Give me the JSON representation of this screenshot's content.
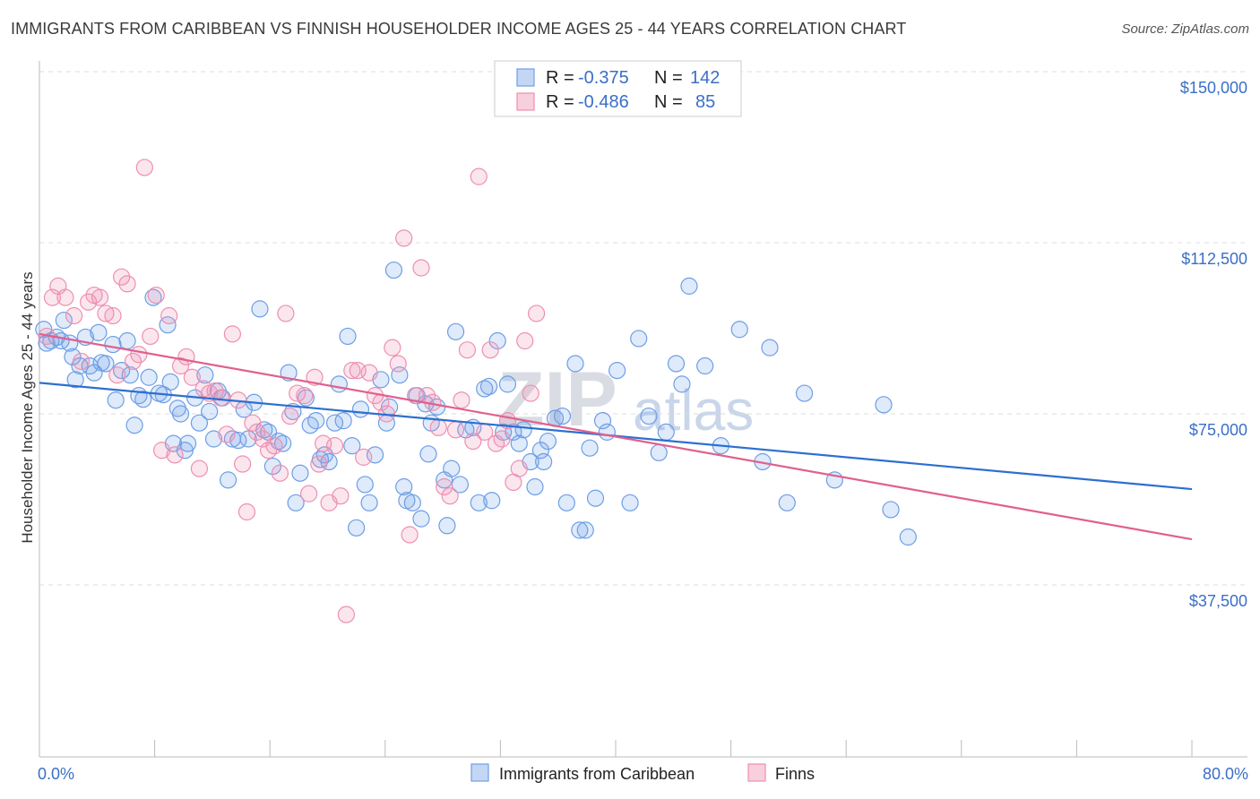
{
  "title": "IMMIGRANTS FROM CARIBBEAN VS FINNISH HOUSEHOLDER INCOME AGES 25 - 44 YEARS CORRELATION CHART",
  "source": "Source: ZipAtlas.com",
  "watermark": {
    "zip": "ZIP",
    "atlas": "atlas"
  },
  "colors": {
    "blue": "#6d9ee6",
    "blue_line": "#2d6fd0",
    "pink": "#ee8fb0",
    "pink_line": "#e0608e",
    "axis_text": "#3a6fc7"
  },
  "legend": {
    "rows": [
      {
        "r_label": "R =",
        "r_value": "-0.375",
        "n_label": "N =",
        "n_value": "142"
      },
      {
        "r_label": "R =",
        "r_value": "-0.486",
        "n_label": "N =",
        "n_value": "85"
      }
    ]
  },
  "chart_data": {
    "type": "scatter",
    "xlabel": "",
    "ylabel": "Householder Income Ages 25 - 44 years",
    "xlim": [
      0,
      80
    ],
    "ylim": [
      0,
      150000
    ],
    "x_tick_labels": [
      "0.0%",
      "80.0%"
    ],
    "y_ticks": [
      37500,
      75000,
      112500,
      150000
    ],
    "y_tick_labels": [
      "$37,500",
      "$75,000",
      "$112,500",
      "$150,000"
    ],
    "grid": true,
    "legend_position": "top-center",
    "series": [
      {
        "name": "Immigrants from Caribbean",
        "trend": {
          "x0": 0,
          "y0": 81800,
          "x1": 80,
          "y1": 58500
        },
        "points": [
          [
            0.3,
            93500
          ],
          [
            0.5,
            90500
          ],
          [
            0.8,
            91000
          ],
          [
            1.2,
            91800
          ],
          [
            1.5,
            91000
          ],
          [
            1.7,
            95500
          ],
          [
            2.1,
            90500
          ],
          [
            2.3,
            87500
          ],
          [
            2.5,
            82500
          ],
          [
            2.8,
            85500
          ],
          [
            3.2,
            91800
          ],
          [
            3.5,
            85500
          ],
          [
            3.8,
            84000
          ],
          [
            4.1,
            92800
          ],
          [
            4.3,
            86200
          ],
          [
            4.6,
            86000
          ],
          [
            5.1,
            90200
          ],
          [
            5.3,
            78000
          ],
          [
            5.7,
            84500
          ],
          [
            6.1,
            91000
          ],
          [
            6.3,
            83500
          ],
          [
            6.6,
            72500
          ],
          [
            6.9,
            79000
          ],
          [
            7.2,
            78200
          ],
          [
            7.6,
            83000
          ],
          [
            7.9,
            100500
          ],
          [
            8.3,
            79500
          ],
          [
            8.6,
            79200
          ],
          [
            8.9,
            94500
          ],
          [
            9.1,
            82000
          ],
          [
            9.3,
            68500
          ],
          [
            9.6,
            76200
          ],
          [
            9.8,
            75000
          ],
          [
            10.1,
            67000
          ],
          [
            10.3,
            68500
          ],
          [
            10.8,
            78500
          ],
          [
            11.1,
            73000
          ],
          [
            11.5,
            83500
          ],
          [
            11.8,
            75500
          ],
          [
            12.1,
            69500
          ],
          [
            12.4,
            80000
          ],
          [
            12.7,
            78500
          ],
          [
            13.1,
            60500
          ],
          [
            13.4,
            69500
          ],
          [
            13.8,
            69200
          ],
          [
            14.2,
            76000
          ],
          [
            14.5,
            69500
          ],
          [
            14.9,
            77500
          ],
          [
            15.3,
            98000
          ],
          [
            15.6,
            71500
          ],
          [
            15.9,
            71000
          ],
          [
            16.2,
            63500
          ],
          [
            16.6,
            69000
          ],
          [
            16.9,
            68500
          ],
          [
            17.3,
            84000
          ],
          [
            17.6,
            75500
          ],
          [
            17.8,
            55500
          ],
          [
            18.1,
            62000
          ],
          [
            18.5,
            78500
          ],
          [
            18.8,
            72500
          ],
          [
            19.2,
            73500
          ],
          [
            19.5,
            65000
          ],
          [
            19.8,
            66000
          ],
          [
            20.1,
            64500
          ],
          [
            20.5,
            73000
          ],
          [
            20.8,
            81500
          ],
          [
            21.1,
            73500
          ],
          [
            21.4,
            92000
          ],
          [
            21.7,
            68000
          ],
          [
            22.0,
            50000
          ],
          [
            22.3,
            76000
          ],
          [
            22.6,
            59500
          ],
          [
            22.9,
            55500
          ],
          [
            23.3,
            66000
          ],
          [
            23.7,
            82500
          ],
          [
            24.1,
            73000
          ],
          [
            24.3,
            76500
          ],
          [
            24.6,
            106500
          ],
          [
            25.0,
            83500
          ],
          [
            25.3,
            59000
          ],
          [
            25.5,
            56000
          ],
          [
            25.9,
            55500
          ],
          [
            26.2,
            79000
          ],
          [
            26.5,
            52000
          ],
          [
            26.8,
            77200
          ],
          [
            27.0,
            66200
          ],
          [
            27.2,
            73000
          ],
          [
            27.6,
            76500
          ],
          [
            28.1,
            60500
          ],
          [
            28.3,
            50500
          ],
          [
            28.6,
            63000
          ],
          [
            28.9,
            93000
          ],
          [
            29.2,
            59500
          ],
          [
            29.6,
            71500
          ],
          [
            30.1,
            72000
          ],
          [
            30.5,
            55500
          ],
          [
            30.9,
            80500
          ],
          [
            31.2,
            81000
          ],
          [
            31.4,
            56000
          ],
          [
            31.8,
            91000
          ],
          [
            32.2,
            71000
          ],
          [
            32.5,
            81500
          ],
          [
            32.9,
            71000
          ],
          [
            33.3,
            68500
          ],
          [
            33.6,
            71500
          ],
          [
            34.1,
            64500
          ],
          [
            34.4,
            59000
          ],
          [
            34.8,
            67000
          ],
          [
            35.0,
            64500
          ],
          [
            35.3,
            69000
          ],
          [
            35.8,
            74000
          ],
          [
            36.3,
            74500
          ],
          [
            36.6,
            55500
          ],
          [
            37.2,
            86000
          ],
          [
            37.5,
            49500
          ],
          [
            37.9,
            49500
          ],
          [
            38.2,
            67500
          ],
          [
            38.6,
            56500
          ],
          [
            39.1,
            73500
          ],
          [
            39.4,
            71000
          ],
          [
            40.1,
            84500
          ],
          [
            41.0,
            55500
          ],
          [
            41.6,
            91500
          ],
          [
            42.3,
            74500
          ],
          [
            43.0,
            66500
          ],
          [
            43.5,
            71000
          ],
          [
            44.2,
            86000
          ],
          [
            44.6,
            81500
          ],
          [
            45.1,
            103000
          ],
          [
            46.2,
            85500
          ],
          [
            47.3,
            68000
          ],
          [
            48.6,
            93500
          ],
          [
            50.2,
            64500
          ],
          [
            50.7,
            89500
          ],
          [
            51.9,
            55500
          ],
          [
            53.1,
            79500
          ],
          [
            55.2,
            60500
          ],
          [
            58.6,
            77000
          ],
          [
            59.1,
            54000
          ],
          [
            60.3,
            48000
          ]
        ]
      },
      {
        "name": "Finns",
        "trend": {
          "x0": 0,
          "y0": 92500,
          "x1": 80,
          "y1": 47500
        },
        "points": [
          [
            0.5,
            92000
          ],
          [
            0.9,
            100500
          ],
          [
            1.3,
            103000
          ],
          [
            1.8,
            100500
          ],
          [
            2.4,
            96500
          ],
          [
            2.9,
            86500
          ],
          [
            3.4,
            99500
          ],
          [
            3.8,
            101000
          ],
          [
            4.2,
            100500
          ],
          [
            4.6,
            97000
          ],
          [
            5.1,
            96500
          ],
          [
            5.4,
            83500
          ],
          [
            5.7,
            105000
          ],
          [
            6.1,
            103500
          ],
          [
            6.5,
            86500
          ],
          [
            6.9,
            88000
          ],
          [
            7.3,
            129000
          ],
          [
            7.7,
            92000
          ],
          [
            8.1,
            101000
          ],
          [
            8.5,
            67000
          ],
          [
            9.0,
            96500
          ],
          [
            9.4,
            66000
          ],
          [
            9.8,
            85500
          ],
          [
            10.2,
            87500
          ],
          [
            10.6,
            83000
          ],
          [
            11.1,
            63000
          ],
          [
            11.4,
            80500
          ],
          [
            11.8,
            79500
          ],
          [
            12.2,
            80000
          ],
          [
            12.6,
            78500
          ],
          [
            13.0,
            70500
          ],
          [
            13.4,
            92500
          ],
          [
            13.8,
            78000
          ],
          [
            14.1,
            64000
          ],
          [
            14.4,
            53500
          ],
          [
            14.8,
            73000
          ],
          [
            15.1,
            71000
          ],
          [
            15.5,
            69500
          ],
          [
            15.9,
            67000
          ],
          [
            16.3,
            68000
          ],
          [
            16.7,
            62000
          ],
          [
            17.1,
            97000
          ],
          [
            17.4,
            74500
          ],
          [
            17.9,
            79500
          ],
          [
            18.4,
            79000
          ],
          [
            18.7,
            57500
          ],
          [
            19.1,
            83000
          ],
          [
            19.4,
            64000
          ],
          [
            19.7,
            68500
          ],
          [
            20.1,
            55500
          ],
          [
            20.5,
            68000
          ],
          [
            20.9,
            57000
          ],
          [
            21.3,
            31000
          ],
          [
            21.7,
            84500
          ],
          [
            22.1,
            84500
          ],
          [
            22.5,
            65500
          ],
          [
            22.9,
            84000
          ],
          [
            23.3,
            79000
          ],
          [
            23.7,
            77500
          ],
          [
            24.1,
            75000
          ],
          [
            24.5,
            89500
          ],
          [
            24.9,
            86000
          ],
          [
            25.3,
            113500
          ],
          [
            25.7,
            48500
          ],
          [
            26.1,
            79000
          ],
          [
            26.5,
            107000
          ],
          [
            26.9,
            79000
          ],
          [
            27.3,
            77500
          ],
          [
            27.7,
            72000
          ],
          [
            28.1,
            59000
          ],
          [
            28.5,
            57000
          ],
          [
            28.9,
            71500
          ],
          [
            29.3,
            78000
          ],
          [
            29.7,
            89000
          ],
          [
            30.1,
            69000
          ],
          [
            30.5,
            127000
          ],
          [
            30.9,
            71000
          ],
          [
            31.3,
            89000
          ],
          [
            31.7,
            68500
          ],
          [
            32.1,
            69500
          ],
          [
            32.5,
            73500
          ],
          [
            32.9,
            60000
          ],
          [
            33.3,
            63000
          ],
          [
            33.7,
            91000
          ],
          [
            34.1,
            79500
          ],
          [
            34.5,
            97000
          ]
        ]
      }
    ]
  },
  "bottom_legend": [
    "Immigrants from Caribbean",
    "Finns"
  ]
}
